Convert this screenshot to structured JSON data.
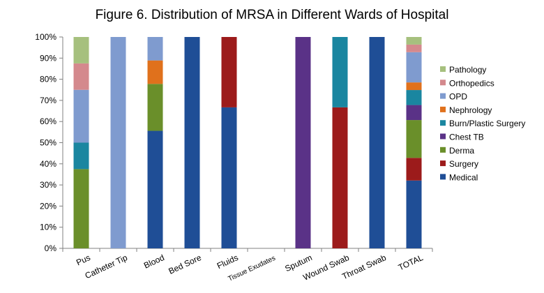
{
  "chart_data": {
    "type": "bar",
    "stacked": true,
    "percent_stacked": true,
    "title": "Figure 6. Distribution of MRSA in Different Wards of Hospital",
    "xlabel": "",
    "ylabel": "",
    "ylim": [
      0,
      100
    ],
    "y_ticks": [
      "0%",
      "10%",
      "20%",
      "30%",
      "40%",
      "50%",
      "60%",
      "70%",
      "80%",
      "90%",
      "100%"
    ],
    "grid": false,
    "legend_position": "right",
    "categories": [
      "Pus",
      "Catheter Tip",
      "Blood",
      "Bed Sore",
      "Fluids",
      "Tissue Exudates",
      "Sputum",
      "Wound Swab",
      "Throat Swab",
      "TOTAL"
    ],
    "series": [
      {
        "name": "Medical",
        "color": "#1f4e96",
        "values": [
          0,
          0,
          55.6,
          100,
          66.7,
          0,
          0,
          0,
          100,
          32.1
        ]
      },
      {
        "name": "Surgery",
        "color": "#9c1b1b",
        "values": [
          0,
          0,
          0,
          0,
          33.3,
          0,
          0,
          66.7,
          0,
          10.7
        ]
      },
      {
        "name": "Derma",
        "color": "#6a8f2a",
        "values": [
          37.5,
          0,
          22.2,
          0,
          0,
          0,
          0,
          0,
          0,
          17.9
        ]
      },
      {
        "name": "Chest TB",
        "color": "#5a3287",
        "values": [
          0,
          0,
          0,
          0,
          0,
          0,
          100,
          0,
          0,
          7.1
        ]
      },
      {
        "name": "Burn/Plastic Surgery",
        "color": "#1a86a0",
        "values": [
          12.5,
          0,
          0,
          0,
          0,
          0,
          0,
          33.3,
          0,
          7.1
        ]
      },
      {
        "name": "Nephrology",
        "color": "#e0711c",
        "values": [
          0,
          0,
          11.1,
          0,
          0,
          0,
          0,
          0,
          0,
          3.6
        ]
      },
      {
        "name": "OPD",
        "color": "#7f9bcf",
        "values": [
          25,
          100,
          11.1,
          0,
          0,
          0,
          0,
          0,
          0,
          14.3
        ]
      },
      {
        "name": "Orthopedics",
        "color": "#d4898d",
        "values": [
          12.5,
          0,
          0,
          0,
          0,
          0,
          0,
          0,
          0,
          3.6
        ]
      },
      {
        "name": "Pathology",
        "color": "#a6c07e",
        "values": [
          12.5,
          0,
          0,
          0,
          0,
          0,
          0,
          0,
          0,
          3.6
        ]
      }
    ],
    "legend_order": [
      "Pathology",
      "Orthopedics",
      "OPD",
      "Nephrology",
      "Burn/Plastic Surgery",
      "Chest TB",
      "Derma",
      "Surgery",
      "Medical"
    ]
  }
}
